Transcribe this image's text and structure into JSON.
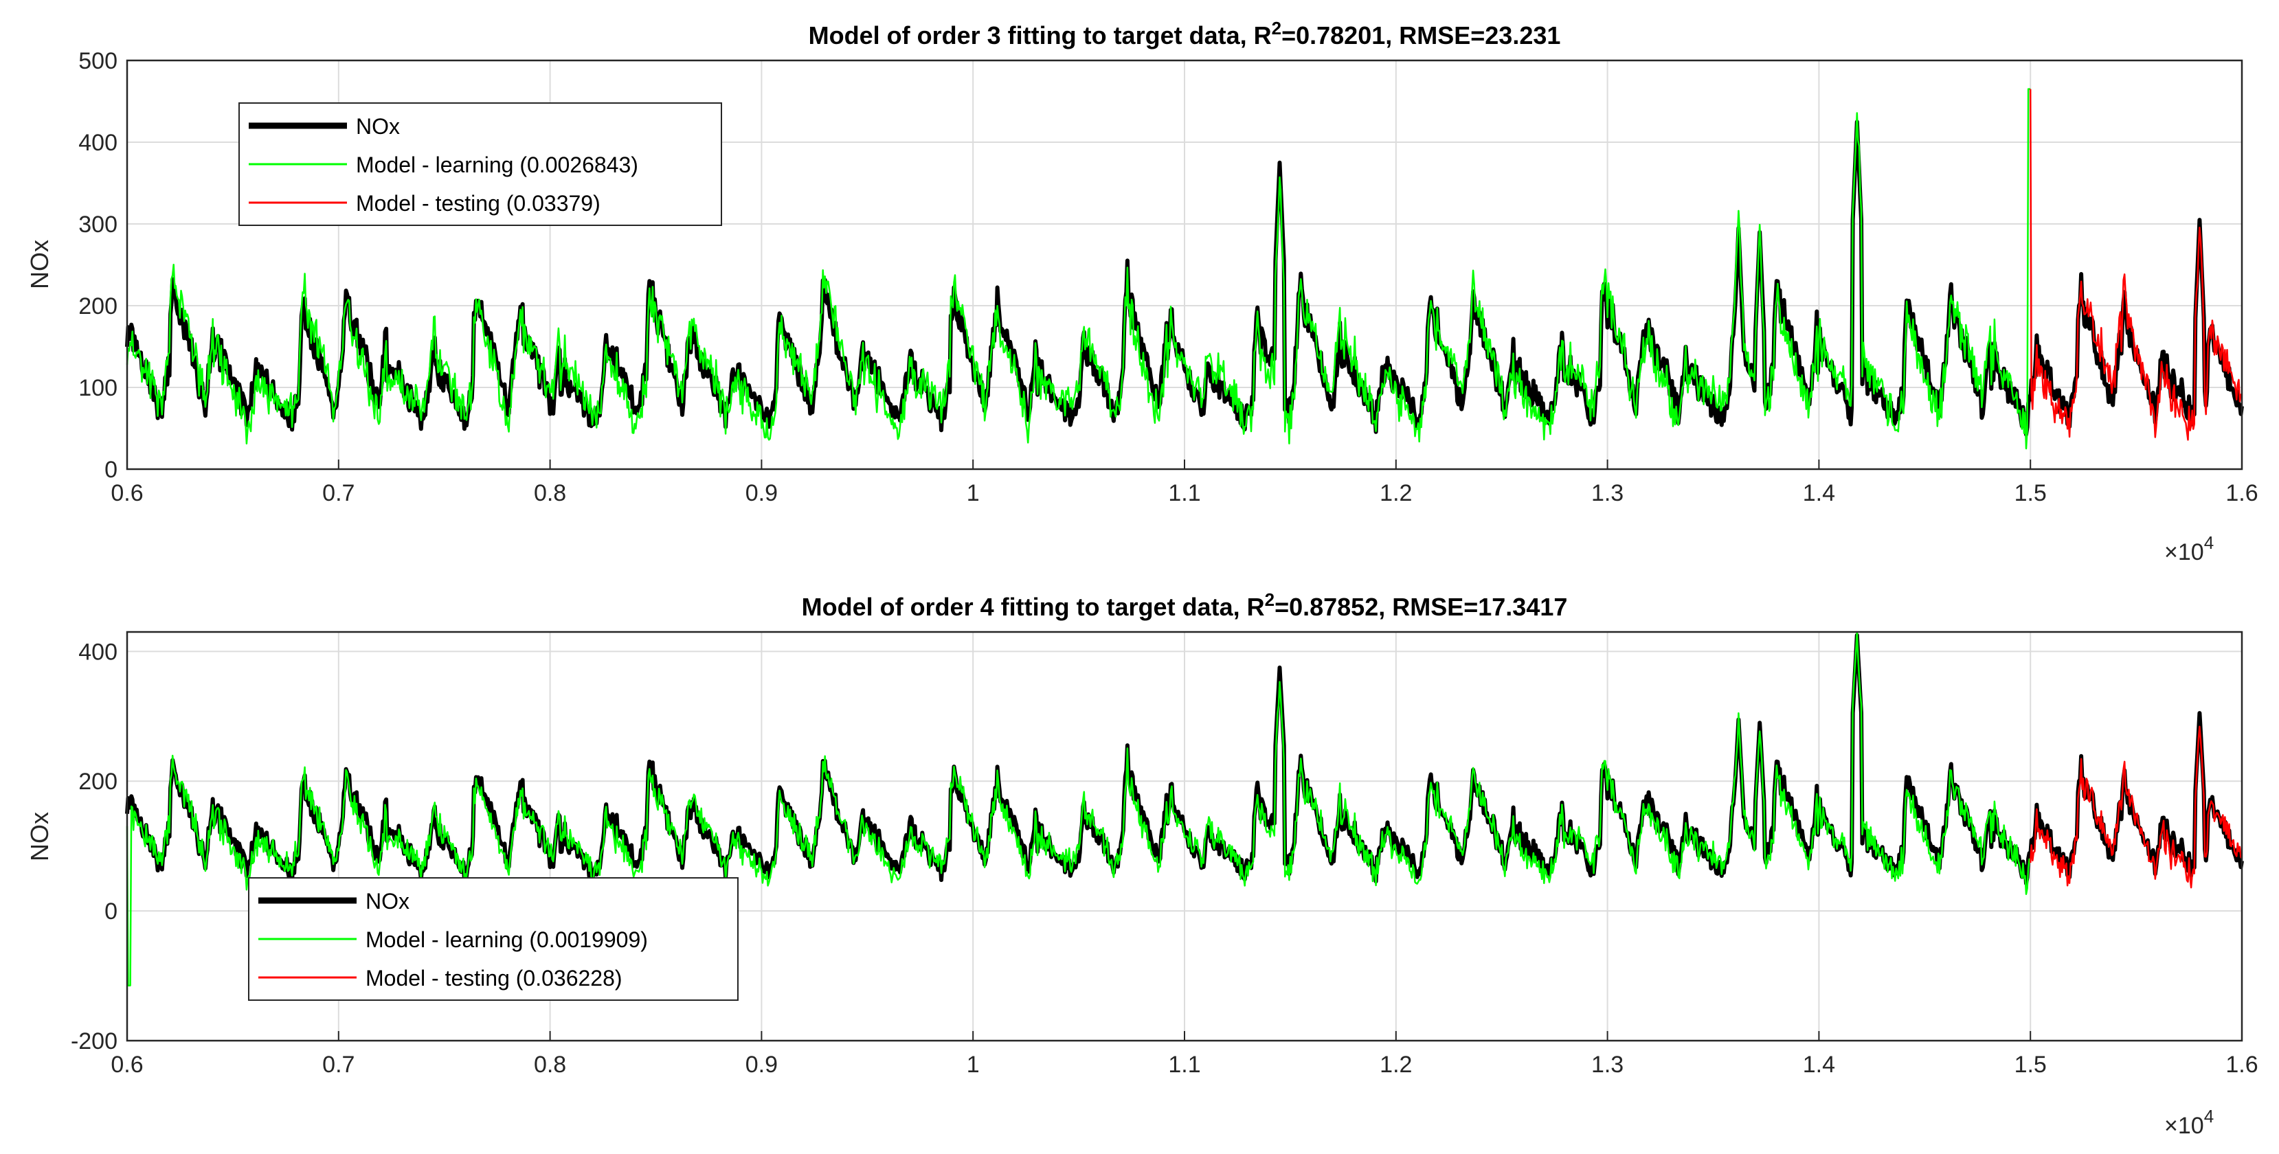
{
  "chart_data": [
    {
      "type": "line",
      "title_prefix": "Model of order 3 fitting to target data, R",
      "title_sup": "2",
      "title_suffix": "=0.78201, RMSE=23.231",
      "xlabel": "",
      "ylabel": "NOx",
      "xlim": [
        6000,
        16000
      ],
      "ylim": [
        0,
        500
      ],
      "xtick_labels": [
        "0.6",
        "0.7",
        "0.8",
        "0.9",
        "1",
        "1.1",
        "1.2",
        "1.3",
        "1.4",
        "1.5",
        "1.6"
      ],
      "xtick_values": [
        6000,
        7000,
        8000,
        9000,
        10000,
        11000,
        12000,
        13000,
        14000,
        15000,
        16000
      ],
      "ytick_labels": [
        "0",
        "100",
        "200",
        "300",
        "400",
        "500"
      ],
      "ytick_values": [
        0,
        100,
        200,
        300,
        400,
        500
      ],
      "exponent_base": "×10",
      "exponent_power": "4",
      "legend_position": "top-left",
      "split_x": 15000,
      "series": [
        {
          "name": "NOx",
          "color": "#000000",
          "legend": "NOx"
        },
        {
          "name": "Model - learning",
          "color": "#00ff00",
          "legend": "Model - learning (0.0026843)"
        },
        {
          "name": "Model - testing",
          "color": "#ff0000",
          "legend": "Model - testing (0.03379)"
        }
      ],
      "model_offset_scale": 1.0,
      "model_noise": 14,
      "spikes": [
        {
          "x": 11450,
          "y": 375
        },
        {
          "x": 14180,
          "y": 425
        },
        {
          "x": 15800,
          "y": 305
        },
        {
          "x": 13620,
          "y": 295
        },
        {
          "x": 13720,
          "y": 290
        }
      ],
      "model_spike": {
        "x": 14995,
        "y": 465
      }
    },
    {
      "type": "line",
      "title_prefix": "Model of order 4 fitting to target data, R",
      "title_sup": "2",
      "title_suffix": "=0.87852, RMSE=17.3417",
      "xlabel": "",
      "ylabel": "NOx",
      "xlim": [
        6000,
        16000
      ],
      "ylim": [
        -200,
        430
      ],
      "xtick_labels": [
        "0.6",
        "0.7",
        "0.8",
        "0.9",
        "1",
        "1.1",
        "1.2",
        "1.3",
        "1.4",
        "1.5",
        "1.6"
      ],
      "xtick_values": [
        6000,
        7000,
        8000,
        9000,
        10000,
        11000,
        12000,
        13000,
        14000,
        15000,
        16000
      ],
      "ytick_labels": [
        "-200",
        "0",
        "200",
        "400"
      ],
      "ytick_values": [
        -200,
        0,
        200,
        400
      ],
      "exponent_base": "×10",
      "exponent_power": "4",
      "legend_position": "bottom-left",
      "split_x": 15000,
      "series": [
        {
          "name": "NOx",
          "color": "#000000",
          "legend": "NOx"
        },
        {
          "name": "Model - learning",
          "color": "#00ff00",
          "legend": "Model - learning (0.0019909)"
        },
        {
          "name": "Model - testing",
          "color": "#ff0000",
          "legend": "Model - testing (0.036228)"
        }
      ],
      "model_offset_scale": 0.7,
      "model_noise": 10,
      "spikes": [
        {
          "x": 11450,
          "y": 375
        },
        {
          "x": 14180,
          "y": 425
        },
        {
          "x": 15800,
          "y": 305
        },
        {
          "x": 13620,
          "y": 295
        },
        {
          "x": 13720,
          "y": 290
        }
      ],
      "model_spike": {
        "x": 6010,
        "y": -115
      }
    }
  ]
}
